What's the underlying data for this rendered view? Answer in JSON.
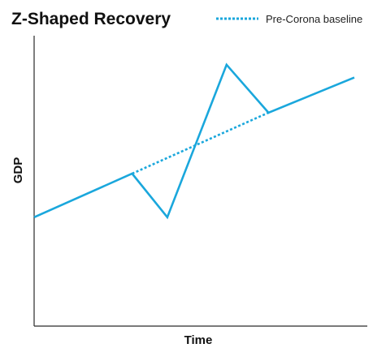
{
  "chart_data": {
    "type": "line",
    "title": "Z-Shaped Recovery",
    "xlabel": "Time",
    "ylabel": "GDP",
    "xlim": [
      0,
      100
    ],
    "ylim": [
      0,
      100
    ],
    "grid": false,
    "legend_position": "top-right",
    "color": "#1aa7dc",
    "series": [
      {
        "name": "",
        "style": "solid",
        "x": [
          0,
          30.6,
          41.6,
          60.1,
          73.2,
          100
        ],
        "y": [
          37.5,
          52.5,
          37.5,
          90.0,
          73.5,
          85.6
        ]
      },
      {
        "name": "Pre-Corona baseline",
        "style": "dotted",
        "x": [
          30.6,
          73.2
        ],
        "y": [
          52.5,
          73.5
        ]
      }
    ]
  }
}
